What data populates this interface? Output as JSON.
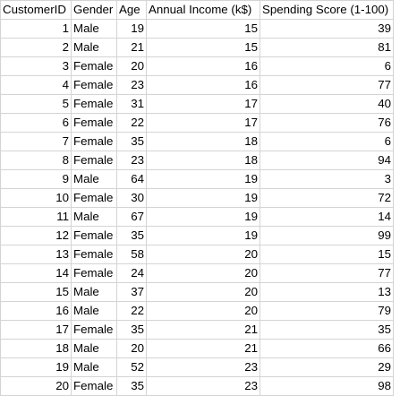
{
  "sheet": {
    "columns": [
      "CustomerID",
      "Gender",
      "Age",
      "Annual Income (k$)",
      "Spending Score (1-100)"
    ],
    "rows": [
      [
        "1",
        "Male",
        "19",
        "15",
        "39"
      ],
      [
        "2",
        "Male",
        "21",
        "15",
        "81"
      ],
      [
        "3",
        "Female",
        "20",
        "16",
        "6"
      ],
      [
        "4",
        "Female",
        "23",
        "16",
        "77"
      ],
      [
        "5",
        "Female",
        "31",
        "17",
        "40"
      ],
      [
        "6",
        "Female",
        "22",
        "17",
        "76"
      ],
      [
        "7",
        "Female",
        "35",
        "18",
        "6"
      ],
      [
        "8",
        "Female",
        "23",
        "18",
        "94"
      ],
      [
        "9",
        "Male",
        "64",
        "19",
        "3"
      ],
      [
        "10",
        "Female",
        "30",
        "19",
        "72"
      ],
      [
        "11",
        "Male",
        "67",
        "19",
        "14"
      ],
      [
        "12",
        "Female",
        "35",
        "19",
        "99"
      ],
      [
        "13",
        "Female",
        "58",
        "20",
        "15"
      ],
      [
        "14",
        "Female",
        "24",
        "20",
        "77"
      ],
      [
        "15",
        "Male",
        "37",
        "20",
        "13"
      ],
      [
        "16",
        "Male",
        "22",
        "20",
        "79"
      ],
      [
        "17",
        "Female",
        "35",
        "21",
        "35"
      ],
      [
        "18",
        "Male",
        "20",
        "21",
        "66"
      ],
      [
        "19",
        "Male",
        "52",
        "23",
        "29"
      ],
      [
        "20",
        "Female",
        "35",
        "23",
        "98"
      ]
    ]
  }
}
